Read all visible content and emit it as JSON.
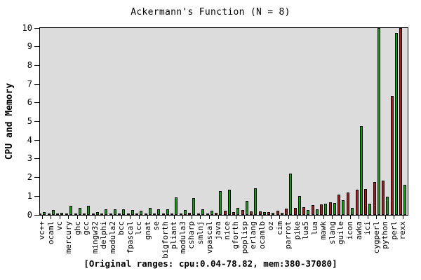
{
  "chart_data": {
    "type": "bar",
    "title": "Ackermann's Function (N = 8)",
    "ylabel": "CPU and Memory",
    "caption": "[Original ranges: cpu:0.04-78.82, mem:380-37080]",
    "ylim": [
      0,
      10
    ],
    "yticks": [
      0,
      1,
      2,
      3,
      4,
      5,
      6,
      7,
      8,
      9,
      10
    ],
    "grid": false,
    "legend": "none",
    "plot_background": "#dcdcdc",
    "categories": [
      "vc++",
      "ocaml",
      "vc",
      "mercury",
      "ghc",
      "gcc",
      "mingw32",
      "delphi",
      "modula2",
      "bcc",
      "fpascal",
      "lcc",
      "gnat",
      "se",
      "bigforth",
      "pliant",
      "modula3",
      "csharp",
      "smlnj",
      "vpascal",
      "java",
      "nice",
      "gforth",
      "poplisp",
      "erlang",
      "ocamlb",
      "oz",
      "cim",
      "parrot",
      "pike",
      "lua5",
      "lua",
      "mawk",
      "slang",
      "guile",
      "icon",
      "awka",
      "ici",
      "cygperl",
      "python",
      "perl",
      "rexx"
    ],
    "series": [
      {
        "name": "Memory",
        "color": "#b01818",
        "position": "left",
        "values": [
          0.05,
          0.05,
          0.05,
          0.08,
          0.08,
          0.05,
          0.05,
          0.05,
          0.05,
          0.05,
          0.05,
          0.05,
          0.05,
          0.05,
          0.05,
          0.05,
          0.08,
          0.1,
          0.08,
          0.09,
          0.11,
          0.22,
          0.16,
          0.26,
          0.19,
          0.19,
          0.14,
          0.24,
          0.33,
          0.36,
          0.41,
          0.51,
          0.58,
          0.66,
          1.08,
          1.2,
          1.33,
          1.39,
          1.76,
          1.85,
          6.35,
          10.0
        ]
      },
      {
        "name": "CPU",
        "color": "#00a800",
        "position": "right",
        "values": [
          0.16,
          0.25,
          0.13,
          0.5,
          0.38,
          0.5,
          0.16,
          0.29,
          0.31,
          0.29,
          0.28,
          0.21,
          0.38,
          0.29,
          0.29,
          0.95,
          0.25,
          0.9,
          0.29,
          0.21,
          1.28,
          1.36,
          0.36,
          0.76,
          1.41,
          0.16,
          0.12,
          0.1,
          2.2,
          1.01,
          0.26,
          0.29,
          0.6,
          0.64,
          0.79,
          0.38,
          4.74,
          0.6,
          10.0,
          0.98,
          9.73,
          1.6
        ]
      }
    ]
  }
}
